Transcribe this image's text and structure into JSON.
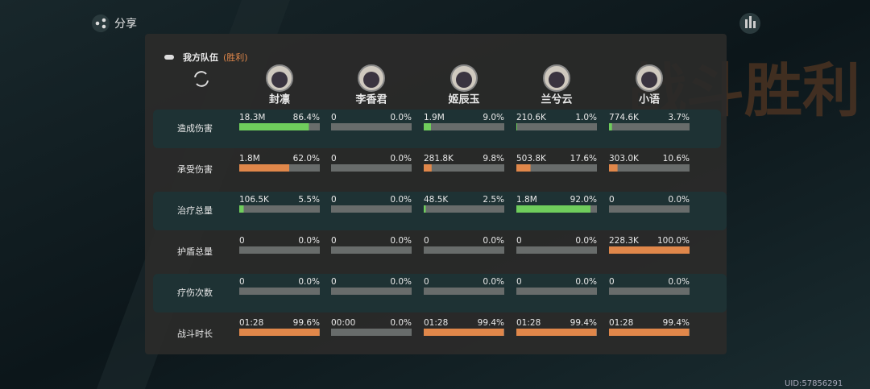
{
  "share_label": "分享",
  "background_title": "战斗胜利",
  "team": {
    "label": "我方队伍",
    "result": "(胜利)"
  },
  "heroes": [
    "封凛",
    "李香君",
    "姬辰玉",
    "兰兮云",
    "小语"
  ],
  "rows": [
    {
      "label": "造成伤害",
      "bar_color": "#6fcd5c",
      "cells": [
        {
          "amount": "18.3M",
          "share": {
            "value": 86.4,
            "label": "86.4%"
          }
        },
        {
          "amount": "0",
          "share": {
            "value": 0,
            "label": "0.0%"
          }
        },
        {
          "amount": "1.9M",
          "share": {
            "value": 9.0,
            "label": "9.0%"
          }
        },
        {
          "amount": "210.6K",
          "share": {
            "value": 1.0,
            "label": "1.0%"
          }
        },
        {
          "amount": "774.6K",
          "share": {
            "value": 3.7,
            "label": "3.7%"
          }
        }
      ]
    },
    {
      "label": "承受伤害",
      "bar_color": "#e0874a",
      "cells": [
        {
          "amount": "1.8M",
          "share": {
            "value": 62.0,
            "label": "62.0%"
          }
        },
        {
          "amount": "0",
          "share": {
            "value": 0,
            "label": "0.0%"
          }
        },
        {
          "amount": "281.8K",
          "share": {
            "value": 9.8,
            "label": "9.8%"
          }
        },
        {
          "amount": "503.8K",
          "share": {
            "value": 17.6,
            "label": "17.6%"
          }
        },
        {
          "amount": "303.0K",
          "share": {
            "value": 10.6,
            "label": "10.6%"
          }
        }
      ]
    },
    {
      "label": "治疗总量",
      "bar_color": "#6fcd5c",
      "cells": [
        {
          "amount": "106.5K",
          "share": {
            "value": 5.5,
            "label": "5.5%"
          }
        },
        {
          "amount": "0",
          "share": {
            "value": 0,
            "label": "0.0%"
          }
        },
        {
          "amount": "48.5K",
          "share": {
            "value": 2.5,
            "label": "2.5%"
          }
        },
        {
          "amount": "1.8M",
          "share": {
            "value": 92.0,
            "label": "92.0%"
          }
        },
        {
          "amount": "0",
          "share": {
            "value": 0,
            "label": "0.0%"
          }
        }
      ]
    },
    {
      "label": "护盾总量",
      "bar_color": "#e0874a",
      "cells": [
        {
          "amount": "0",
          "share": {
            "value": 0,
            "label": "0.0%"
          }
        },
        {
          "amount": "0",
          "share": {
            "value": 0,
            "label": "0.0%"
          }
        },
        {
          "amount": "0",
          "share": {
            "value": 0,
            "label": "0.0%"
          }
        },
        {
          "amount": "0",
          "share": {
            "value": 0,
            "label": "0.0%"
          }
        },
        {
          "amount": "228.3K",
          "share": {
            "value": 100.0,
            "label": "100.0%"
          }
        }
      ]
    },
    {
      "label": "疗伤次数",
      "bar_color": "#e0874a",
      "cells": [
        {
          "amount": "0",
          "share": {
            "value": 0,
            "label": "0.0%"
          }
        },
        {
          "amount": "0",
          "share": {
            "value": 0,
            "label": "0.0%"
          }
        },
        {
          "amount": "0",
          "share": {
            "value": 0,
            "label": "0.0%"
          }
        },
        {
          "amount": "0",
          "share": {
            "value": 0,
            "label": "0.0%"
          }
        },
        {
          "amount": "0",
          "share": {
            "value": 0,
            "label": "0.0%"
          }
        }
      ]
    },
    {
      "label": "战斗时长",
      "bar_color": "#e0874a",
      "cells": [
        {
          "amount": "01:28",
          "share": {
            "value": 99.6,
            "label": "99.6%"
          }
        },
        {
          "amount": "00:00",
          "share": {
            "value": 0,
            "label": "0.0%"
          }
        },
        {
          "amount": "01:28",
          "share": {
            "value": 99.4,
            "label": "99.4%"
          }
        },
        {
          "amount": "01:28",
          "share": {
            "value": 99.4,
            "label": "99.4%"
          }
        },
        {
          "amount": "01:28",
          "share": {
            "value": 99.4,
            "label": "99.4%"
          }
        }
      ]
    }
  ],
  "uid": "UID:57856291"
}
